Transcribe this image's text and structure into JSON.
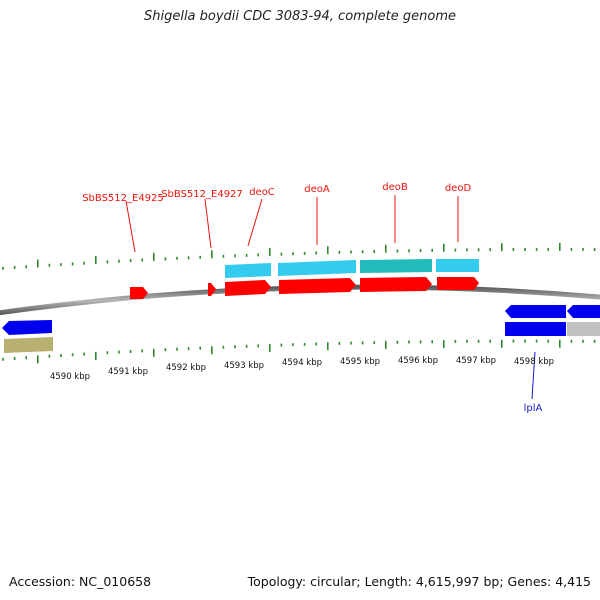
{
  "title": "Shigella boydii CDC 3083-94, complete genome",
  "footer": {
    "accession": "Accession: NC_010658",
    "summary": "Topology: circular; Length: 4,615,997 bp; Genes: 4,415"
  },
  "kbp_labels": [
    "4590 kbp",
    "4591 kbp",
    "4592 kbp",
    "4593 kbp",
    "4594 kbp",
    "4595 kbp",
    "4596 kbp",
    "4597 kbp",
    "4598 kbp"
  ],
  "genes_forward": [
    "SbBS512_E4925",
    "SbBS512_E4927",
    "deoC",
    "deoA",
    "deoB",
    "deoD"
  ],
  "genes_reverse": [
    "lplA"
  ],
  "colors": {
    "forward_gene_label": "#e8140a",
    "reverse_gene_label": "#1a1acc",
    "cds_red": "#ff0000",
    "cds_cyan": "#33ccee",
    "cds_teal": "#22bbbb",
    "cds_blue": "#0000ee",
    "cds_olive": "#b8b070",
    "cds_gray": "#c0c0c0",
    "backbone": "#808080",
    "ticks": "#2e8b2e"
  }
}
